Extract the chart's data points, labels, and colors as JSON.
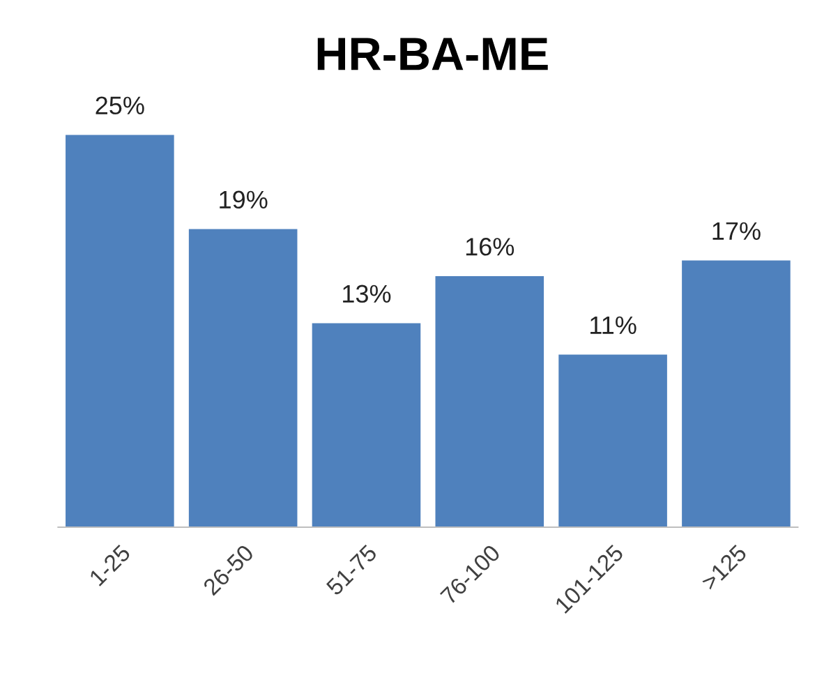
{
  "chart_data": {
    "type": "bar",
    "title": "HR-BA-ME",
    "categories": [
      "1-25",
      "26-50",
      "51-75",
      "76-100",
      "101-125",
      ">125"
    ],
    "values": [
      25,
      19,
      13,
      16,
      11,
      17
    ],
    "value_labels": [
      "25%",
      "19%",
      "13%",
      "16%",
      "11%",
      "17%"
    ],
    "color": "#4f81bd",
    "grid": false,
    "legend": false,
    "tick_labels": "x"
  }
}
